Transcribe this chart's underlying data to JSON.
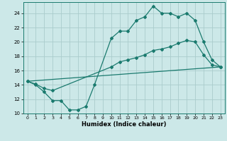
{
  "xlabel": "Humidex (Indice chaleur)",
  "bg_color": "#cce8e8",
  "grid_color": "#aacccc",
  "line_color": "#1a7a6e",
  "xlim": [
    -0.5,
    23.5
  ],
  "ylim": [
    10,
    25.5
  ],
  "yticks": [
    10,
    12,
    14,
    16,
    18,
    20,
    22,
    24
  ],
  "xticks": [
    0,
    1,
    2,
    3,
    4,
    5,
    6,
    7,
    8,
    9,
    10,
    11,
    12,
    13,
    14,
    15,
    16,
    17,
    18,
    19,
    20,
    21,
    22,
    23
  ],
  "line1_x": [
    0,
    1,
    2,
    3,
    4,
    5,
    6,
    7,
    8,
    10,
    11,
    12,
    13,
    14,
    15,
    16,
    17,
    18,
    19,
    20,
    21,
    22,
    23
  ],
  "line1_y": [
    14.5,
    14.0,
    13.0,
    11.8,
    11.8,
    10.5,
    10.5,
    11.0,
    14.0,
    20.5,
    21.5,
    21.5,
    23.0,
    23.5,
    25.0,
    24.0,
    24.0,
    23.5,
    24.0,
    23.0,
    20.0,
    17.5,
    16.5
  ],
  "line2_x": [
    0,
    23
  ],
  "line2_y": [
    14.5,
    16.5
  ],
  "line3_x": [
    0,
    1,
    2,
    3,
    10,
    11,
    12,
    13,
    14,
    15,
    16,
    17,
    18,
    19,
    20,
    21,
    22,
    23
  ],
  "line3_y": [
    14.5,
    14.1,
    13.5,
    13.2,
    16.5,
    17.2,
    17.5,
    17.8,
    18.2,
    18.8,
    19.0,
    19.3,
    19.8,
    20.2,
    20.0,
    18.2,
    16.8,
    16.5
  ]
}
